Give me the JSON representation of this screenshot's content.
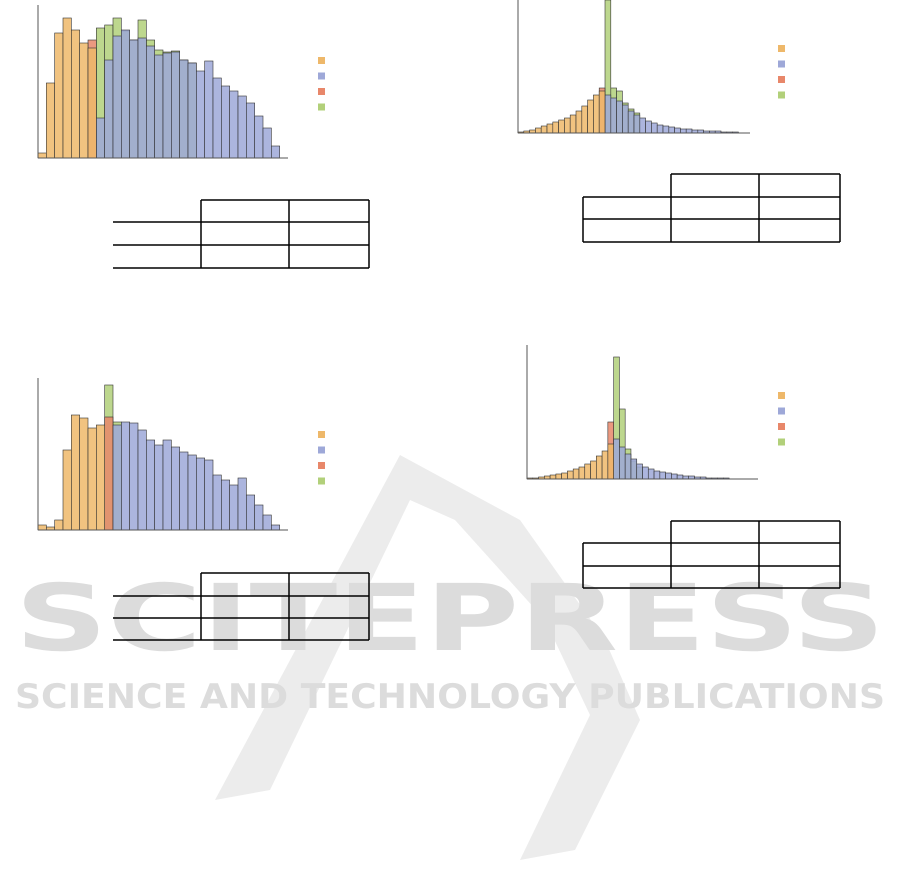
{
  "watermark": {
    "title": "SCITEPRESS",
    "subtitle": "SCIENCE AND TECHNOLOGY PUBLICATIONS"
  },
  "chart_data": [
    {
      "type": "histogram",
      "xlim": [
        0,
        30
      ],
      "ylim": [
        0,
        153
      ],
      "bins": [
        0,
        1,
        2,
        3,
        4,
        5,
        6,
        7,
        8,
        9,
        10,
        11,
        12,
        13,
        14,
        15,
        16,
        17,
        18,
        19,
        20,
        21,
        22,
        23,
        24,
        25,
        26,
        27,
        28,
        29,
        30
      ],
      "series": [
        {
          "color": "#eeb86a",
          "values": [
            5,
            75,
            125,
            140,
            128,
            115,
            110,
            0,
            0,
            0,
            0,
            0,
            0,
            0,
            0,
            0,
            0,
            0,
            0,
            0,
            0,
            0,
            0,
            0,
            0,
            0,
            0,
            0,
            0,
            0
          ]
        },
        {
          "color": "#9ea8d8",
          "values": [
            0,
            0,
            0,
            0,
            0,
            0,
            0,
            40,
            98,
            122,
            128,
            118,
            120,
            112,
            103,
            105,
            106,
            98,
            95,
            87,
            97,
            80,
            72,
            67,
            62,
            55,
            42,
            30,
            12,
            0
          ]
        },
        {
          "color": "#e8876a",
          "values": [
            0,
            0,
            0,
            0,
            0,
            0,
            118,
            0,
            0,
            0,
            0,
            0,
            0,
            0,
            0,
            0,
            0,
            0,
            0,
            0,
            0,
            0,
            0,
            0,
            0,
            0,
            0,
            0,
            0,
            0
          ]
        },
        {
          "color": "#b2d07a",
          "values": [
            0,
            0,
            0,
            0,
            0,
            0,
            0,
            130,
            133,
            140,
            127,
            118,
            138,
            118,
            108,
            106,
            107,
            98,
            95,
            0,
            0,
            0,
            0,
            0,
            0,
            0,
            0,
            0,
            0,
            0
          ]
        }
      ]
    },
    {
      "type": "histogram",
      "xlim": [
        0,
        30
      ],
      "ylim": [
        0,
        152
      ],
      "bins": [
        0,
        1,
        2,
        3,
        4,
        5,
        6,
        7,
        8,
        9,
        10,
        11,
        12,
        13,
        14,
        15,
        16,
        17,
        18,
        19,
        20,
        21,
        22,
        23,
        24,
        25,
        26,
        27,
        28,
        29,
        30
      ],
      "series": [
        {
          "color": "#eeb86a",
          "values": [
            5,
            3,
            10,
            80,
            115,
            112,
            102,
            105,
            0,
            0,
            0,
            0,
            0,
            0,
            0,
            0,
            0,
            0,
            0,
            0,
            0,
            0,
            0,
            0,
            0,
            0,
            0,
            0,
            0,
            0
          ]
        },
        {
          "color": "#9ea8d8",
          "values": [
            0,
            0,
            0,
            0,
            0,
            0,
            0,
            0,
            0,
            105,
            108,
            107,
            100,
            90,
            85,
            90,
            83,
            78,
            75,
            72,
            70,
            55,
            50,
            45,
            52,
            35,
            25,
            15,
            5,
            0
          ]
        },
        {
          "color": "#e8876a",
          "values": [
            0,
            0,
            0,
            0,
            0,
            0,
            0,
            0,
            113,
            0,
            0,
            0,
            0,
            0,
            0,
            0,
            0,
            0,
            0,
            0,
            0,
            0,
            0,
            0,
            0,
            0,
            0,
            0,
            0,
            0
          ]
        },
        {
          "color": "#b2d07a",
          "values": [
            0,
            0,
            0,
            0,
            0,
            0,
            0,
            0,
            145,
            108,
            0,
            0,
            0,
            0,
            0,
            0,
            0,
            0,
            0,
            0,
            0,
            0,
            0,
            0,
            0,
            0,
            0,
            0,
            0,
            0
          ]
        }
      ]
    },
    {
      "type": "histogram",
      "xlim": [
        0,
        40
      ],
      "ylim": [
        0,
        133
      ],
      "bins": [
        0,
        1,
        2,
        3,
        4,
        5,
        6,
        7,
        8,
        9,
        10,
        11,
        12,
        13,
        14,
        15,
        16,
        17,
        18,
        19,
        20,
        21,
        22,
        23,
        24,
        25,
        26,
        27,
        28,
        29,
        30,
        31,
        32,
        33,
        34,
        35,
        36,
        37,
        38,
        39,
        40
      ],
      "series": [
        {
          "color": "#eeb86a",
          "values": [
            1,
            2,
            3,
            5,
            7,
            9,
            11,
            13,
            15,
            18,
            22,
            27,
            33,
            38,
            42,
            0,
            0,
            0,
            0,
            0,
            0,
            0,
            0,
            0,
            0,
            0,
            0,
            0,
            0,
            0,
            0,
            0,
            0,
            0,
            0,
            0,
            0,
            0,
            0,
            0
          ]
        },
        {
          "color": "#9ea8d8",
          "values": [
            0,
            0,
            0,
            0,
            0,
            0,
            0,
            0,
            0,
            0,
            0,
            0,
            0,
            0,
            0,
            38,
            35,
            32,
            28,
            22,
            18,
            15,
            12,
            10,
            8,
            7,
            6,
            5,
            4,
            4,
            3,
            3,
            2,
            2,
            2,
            1,
            1,
            1,
            0,
            0
          ]
        },
        {
          "color": "#e8876a",
          "values": [
            0,
            0,
            0,
            0,
            0,
            0,
            0,
            0,
            0,
            0,
            0,
            0,
            0,
            0,
            45,
            0,
            0,
            0,
            0,
            0,
            0,
            0,
            0,
            0,
            0,
            0,
            0,
            0,
            0,
            0,
            0,
            0,
            0,
            0,
            0,
            0,
            0,
            0,
            0,
            0
          ]
        },
        {
          "color": "#b2d07a",
          "values": [
            0,
            0,
            0,
            0,
            0,
            0,
            0,
            0,
            0,
            0,
            0,
            0,
            0,
            0,
            0,
            133,
            45,
            42,
            30,
            24,
            20,
            0,
            0,
            0,
            0,
            0,
            0,
            0,
            0,
            0,
            0,
            0,
            0,
            0,
            0,
            0,
            0,
            0,
            0,
            0
          ]
        }
      ]
    },
    {
      "type": "histogram",
      "xlim": [
        0,
        40
      ],
      "ylim": [
        0,
        134
      ],
      "bins": [
        0,
        1,
        2,
        3,
        4,
        5,
        6,
        7,
        8,
        9,
        10,
        11,
        12,
        13,
        14,
        15,
        16,
        17,
        18,
        19,
        20,
        21,
        22,
        23,
        24,
        25,
        26,
        27,
        28,
        29,
        30,
        31,
        32,
        33,
        34,
        35,
        36,
        37,
        38,
        39,
        40
      ],
      "series": [
        {
          "color": "#eeb86a",
          "values": [
            1,
            1,
            2,
            3,
            4,
            5,
            6,
            8,
            10,
            12,
            15,
            18,
            23,
            28,
            35,
            0,
            0,
            0,
            0,
            0,
            0,
            0,
            0,
            0,
            0,
            0,
            0,
            0,
            0,
            0,
            0,
            0,
            0,
            0,
            0,
            0,
            0,
            0,
            0,
            0
          ]
        },
        {
          "color": "#9ea8d8",
          "values": [
            0,
            0,
            0,
            0,
            0,
            0,
            0,
            0,
            0,
            0,
            0,
            0,
            0,
            0,
            0,
            40,
            32,
            25,
            20,
            15,
            12,
            10,
            8,
            7,
            6,
            5,
            4,
            3,
            3,
            2,
            2,
            1,
            1,
            1,
            1,
            0,
            0,
            0,
            0,
            0
          ]
        },
        {
          "color": "#e8876a",
          "values": [
            0,
            0,
            0,
            0,
            0,
            0,
            0,
            0,
            0,
            0,
            0,
            0,
            0,
            0,
            57,
            0,
            0,
            0,
            0,
            0,
            0,
            0,
            0,
            0,
            0,
            0,
            0,
            0,
            0,
            0,
            0,
            0,
            0,
            0,
            0,
            0,
            0,
            0,
            0,
            0
          ]
        },
        {
          "color": "#b2d07a",
          "values": [
            0,
            0,
            0,
            0,
            0,
            0,
            0,
            0,
            0,
            0,
            0,
            0,
            0,
            0,
            0,
            122,
            70,
            30,
            18,
            12,
            0,
            0,
            0,
            0,
            0,
            0,
            0,
            0,
            0,
            0,
            0,
            0,
            0,
            0,
            0,
            0,
            0,
            0,
            0,
            0
          ]
        }
      ]
    }
  ]
}
